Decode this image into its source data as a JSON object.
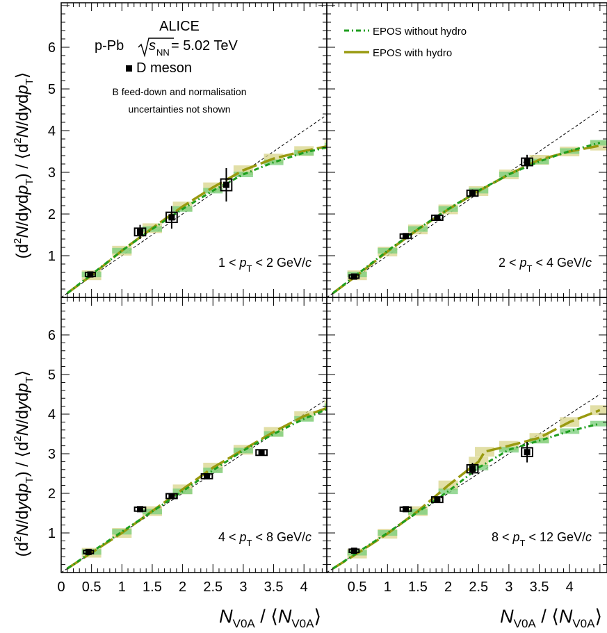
{
  "figure": {
    "experiment": "ALICE",
    "system": "p-Pb",
    "energy_sqrt": "s",
    "energy_sub": "NN",
    "energy_value": " = 5.02 TeV",
    "particle": "D meson",
    "note_line1": "B feed-down and normalisation",
    "note_line2": "uncertainties not shown"
  },
  "axis_text": {
    "y_parts": {
      "open": "(d",
      "sup2": "2",
      "N": "N",
      "dyd": "/d",
      "y": "y",
      "d": "d",
      "p": "p",
      "T": "T",
      "close": ") / ⟨d",
      "N2": "N",
      "dyd2": "/d",
      "y2": "y",
      "d2": "d",
      "p2": "p",
      "T2": "T",
      "end": "⟩"
    },
    "x_parts": {
      "N": "N",
      "V0A": "V0A",
      "mid": " / ⟨",
      "N2": "N",
      "V0A2": "V0A",
      "end": "⟩"
    }
  },
  "colors": {
    "data": "#000000",
    "epos_no_hydro": "#1f9e1f",
    "epos_hydro": "#999a10",
    "band_no_hydro": "#7fd07f",
    "band_hydro": "#d8d48a",
    "reference": "#000000"
  },
  "chart_data": [
    {
      "type": "scatter",
      "panel": "top-left",
      "pt_label": {
        "pre": "1 < ",
        "p": "p",
        "T": "T",
        "post": " < 2 GeV/",
        "c": "c"
      },
      "xlim": [
        0,
        4.5
      ],
      "ylim": [
        0,
        7
      ],
      "x_ticks": [
        "0",
        "0.5",
        "1",
        "1.5",
        "2",
        "2.5",
        "3",
        "3.5",
        "4"
      ],
      "y_ticks": [
        "1",
        "2",
        "3",
        "4",
        "5",
        "6"
      ],
      "legend": [
        "EPOS without hydro",
        "EPOS with hydro"
      ],
      "series": [
        {
          "name": "D meson",
          "x": [
            0.48,
            1.3,
            1.82,
            2.72
          ],
          "y": [
            0.55,
            1.57,
            1.92,
            2.7
          ],
          "yerr": [
            0.05,
            0.17,
            0.27,
            0.4
          ],
          "syst_dx": [
            0.08,
            0.09,
            0.09,
            0.09
          ],
          "syst_dy": [
            0.05,
            0.09,
            0.12,
            0.14
          ]
        },
        {
          "name": "EPOS without hydro",
          "x": [
            0.1,
            0.5,
            1.0,
            1.5,
            2.0,
            2.5,
            3.0,
            3.5,
            4.0,
            4.5
          ],
          "y": [
            0.1,
            0.55,
            1.12,
            1.64,
            2.12,
            2.56,
            2.95,
            3.24,
            3.47,
            3.64
          ]
        },
        {
          "name": "EPOS with hydro",
          "x": [
            0.1,
            0.5,
            1.0,
            1.5,
            2.0,
            2.5,
            3.0,
            3.5,
            4.0,
            4.5
          ],
          "y": [
            0.1,
            0.53,
            1.12,
            1.66,
            2.18,
            2.64,
            3.05,
            3.33,
            3.51,
            3.66
          ]
        }
      ],
      "reference_line": [
        [
          0,
          0
        ],
        [
          4.5,
          4.5
        ]
      ]
    },
    {
      "type": "scatter",
      "panel": "top-right",
      "pt_label": {
        "pre": "2 < ",
        "p": "p",
        "T": "T",
        "post": " < 4 GeV/",
        "c": "c"
      },
      "xlim": [
        0,
        4.5
      ],
      "ylim": [
        0,
        7
      ],
      "series": [
        {
          "name": "D meson",
          "x": [
            0.45,
            1.3,
            1.82,
            2.4,
            3.3
          ],
          "y": [
            0.5,
            1.47,
            1.91,
            2.5,
            3.25
          ],
          "yerr": [
            0.04,
            0.06,
            0.06,
            0.09,
            0.17
          ],
          "syst_dx": [
            0.08,
            0.09,
            0.09,
            0.09,
            0.09
          ],
          "syst_dy": [
            0.04,
            0.05,
            0.06,
            0.07,
            0.09
          ]
        },
        {
          "name": "EPOS without hydro",
          "x": [
            0.1,
            0.5,
            1.0,
            1.5,
            2.0,
            2.5,
            3.0,
            3.5,
            4.0,
            4.5
          ],
          "y": [
            0.1,
            0.55,
            1.12,
            1.64,
            2.12,
            2.56,
            2.95,
            3.26,
            3.51,
            3.71
          ]
        },
        {
          "name": "EPOS with hydro",
          "x": [
            0.1,
            0.5,
            1.0,
            1.5,
            2.0,
            2.5,
            3.0,
            3.5,
            4.0,
            4.5
          ],
          "y": [
            0.1,
            0.53,
            1.1,
            1.63,
            2.11,
            2.55,
            2.95,
            3.3,
            3.5,
            3.64
          ]
        }
      ],
      "reference_line": [
        [
          0,
          0
        ],
        [
          4.5,
          4.5
        ]
      ]
    },
    {
      "type": "scatter",
      "panel": "bottom-left",
      "pt_label": {
        "pre": "4 < ",
        "p": "p",
        "T": "T",
        "post": " < 8 GeV/",
        "c": "c"
      },
      "xlim": [
        0,
        4.5
      ],
      "ylim": [
        0,
        7
      ],
      "series": [
        {
          "name": "D meson",
          "x": [
            0.45,
            1.3,
            1.82,
            2.4,
            3.3
          ],
          "y": [
            0.52,
            1.6,
            1.93,
            2.43,
            3.03
          ],
          "yerr": [
            0.04,
            0.05,
            0.06,
            0.06,
            0.08
          ],
          "syst_dx": [
            0.08,
            0.09,
            0.09,
            0.09,
            0.09
          ],
          "syst_dy": [
            0.04,
            0.05,
            0.06,
            0.06,
            0.07
          ]
        },
        {
          "name": "EPOS without hydro",
          "x": [
            0.1,
            0.5,
            1.0,
            1.5,
            2.0,
            2.5,
            3.0,
            3.5,
            4.0,
            4.5
          ],
          "y": [
            0.1,
            0.52,
            1.03,
            1.54,
            2.05,
            2.58,
            3.08,
            3.5,
            3.88,
            4.2
          ]
        },
        {
          "name": "EPOS with hydro",
          "x": [
            0.1,
            0.5,
            1.0,
            1.5,
            2.0,
            2.5,
            3.0,
            3.5,
            4.0,
            4.5
          ],
          "y": [
            0.1,
            0.5,
            1.0,
            1.55,
            2.1,
            2.65,
            3.1,
            3.55,
            3.95,
            4.22
          ]
        }
      ],
      "reference_line": [
        [
          0,
          0
        ],
        [
          4.5,
          4.5
        ]
      ]
    },
    {
      "type": "scatter",
      "panel": "bottom-right",
      "pt_label": {
        "pre": "8 < ",
        "p": "p",
        "T": "T",
        "post": " < 12 GeV/",
        "c": "c"
      },
      "xlim": [
        0,
        4.5
      ],
      "ylim": [
        0,
        7
      ],
      "series": [
        {
          "name": "D meson",
          "x": [
            0.45,
            1.3,
            1.82,
            2.4,
            3.3
          ],
          "y": [
            0.55,
            1.6,
            1.84,
            2.62,
            3.04
          ],
          "yerr": [
            0.04,
            0.06,
            0.07,
            0.15,
            0.26
          ],
          "syst_dx": [
            0.08,
            0.09,
            0.09,
            0.09,
            0.09
          ],
          "syst_dy": [
            0.04,
            0.05,
            0.07,
            0.1,
            0.11
          ]
        },
        {
          "name": "EPOS without hydro",
          "x": [
            0.1,
            0.5,
            1.0,
            1.5,
            2.0,
            2.5,
            3.0,
            3.5,
            4.0,
            4.5
          ],
          "y": [
            0.1,
            0.5,
            1.0,
            1.53,
            2.05,
            2.65,
            3.1,
            3.33,
            3.57,
            3.76
          ]
        },
        {
          "name": "EPOS with hydro",
          "x": [
            0.1,
            0.5,
            1.0,
            1.5,
            2.0,
            2.5,
            2.6,
            3.0,
            3.5,
            4.0,
            4.5
          ],
          "y": [
            0.1,
            0.48,
            0.98,
            1.55,
            2.2,
            2.8,
            3.05,
            3.2,
            3.4,
            3.8,
            4.1
          ]
        }
      ],
      "reference_line": [
        [
          0,
          0
        ],
        [
          4.5,
          4.5
        ]
      ]
    }
  ]
}
